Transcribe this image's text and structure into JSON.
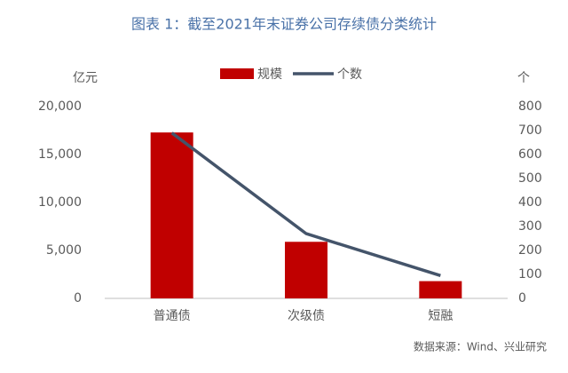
{
  "chart_data": {
    "type": "bar",
    "title": "图表 1：截至2021年末证券公司存续债分类统计",
    "y_label": "亿元",
    "y2_label": "个",
    "source": "数据来源：Wind、兴业研究",
    "categories": [
      "普通债",
      "次级债",
      "短融"
    ],
    "series": [
      {
        "name": "规模",
        "type": "bar",
        "color": "#c00000",
        "values": [
          17300,
          5900,
          1800
        ]
      },
      {
        "name": "个数",
        "type": "line",
        "axis": "y2",
        "color": "#44546a",
        "values": [
          690,
          270,
          95
        ]
      }
    ],
    "ylim": [
      0,
      20000
    ],
    "yticks": [
      0,
      {
        "value": 5000,
        "label": "5,000"
      },
      {
        "value": 10000,
        "label": "10,000"
      },
      {
        "value": 15000,
        "label": "15,000"
      },
      {
        "value": 20000,
        "label": "20,000"
      }
    ],
    "y2lim": [
      0,
      800
    ],
    "y2ticks": [
      0,
      100,
      200,
      300,
      400,
      500,
      600,
      700,
      800
    ],
    "legend": "top"
  }
}
